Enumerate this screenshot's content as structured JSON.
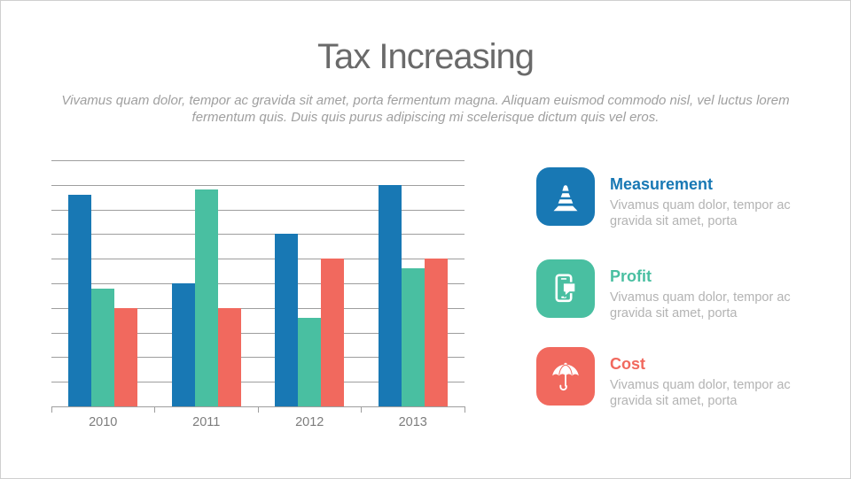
{
  "slide": {
    "title": "Tax Increasing",
    "subtitle_line1": "Vivamus quam dolor, tempor ac gravida sit amet,  porta fermentum magna. Aliquam euismod commodo nisl, vel luctus lorem",
    "subtitle_line2": "fermentum quis. Duis quis purus adipiscing mi scelerisque dictum quis vel eros."
  },
  "chart_data": {
    "type": "bar",
    "title": "",
    "xlabel": "",
    "ylabel": "",
    "categories": [
      "2010",
      "2011",
      "2012",
      "2013"
    ],
    "series": [
      {
        "name": "Measurement",
        "color": "#1878b4",
        "values": [
          8.6,
          5.0,
          7.0,
          9.0
        ]
      },
      {
        "name": "Profit",
        "color": "#49bfa1",
        "values": [
          4.8,
          8.8,
          3.6,
          5.6
        ]
      },
      {
        "name": "Cost",
        "color": "#f1695e",
        "values": [
          4.0,
          4.0,
          6.0,
          6.0
        ]
      }
    ],
    "ylim": [
      0,
      10
    ],
    "y_tick_interval": 1,
    "grid": "horizontal",
    "gridline_color": "#9e9e9e",
    "axis_label_color": "#7d7d7d",
    "legend_position": "right panel with icon tiles"
  },
  "legend": {
    "items": [
      {
        "title": "Measurement",
        "icon": "traffic-cone-icon",
        "color": "#1878b4",
        "desc_line1": "Vivamus quam dolor, tempor ac",
        "desc_line2": "gravida sit amet, porta"
      },
      {
        "title": "Profit",
        "icon": "smartphone-chat-icon",
        "color": "#49bfa1",
        "desc_line1": "Vivamus quam dolor, tempor ac",
        "desc_line2": "gravida sit amet, porta"
      },
      {
        "title": "Cost",
        "icon": "umbrella-icon",
        "color": "#f1695e",
        "desc_line1": "Vivamus quam dolor, tempor ac",
        "desc_line2": "gravida sit amet, porta"
      }
    ]
  }
}
